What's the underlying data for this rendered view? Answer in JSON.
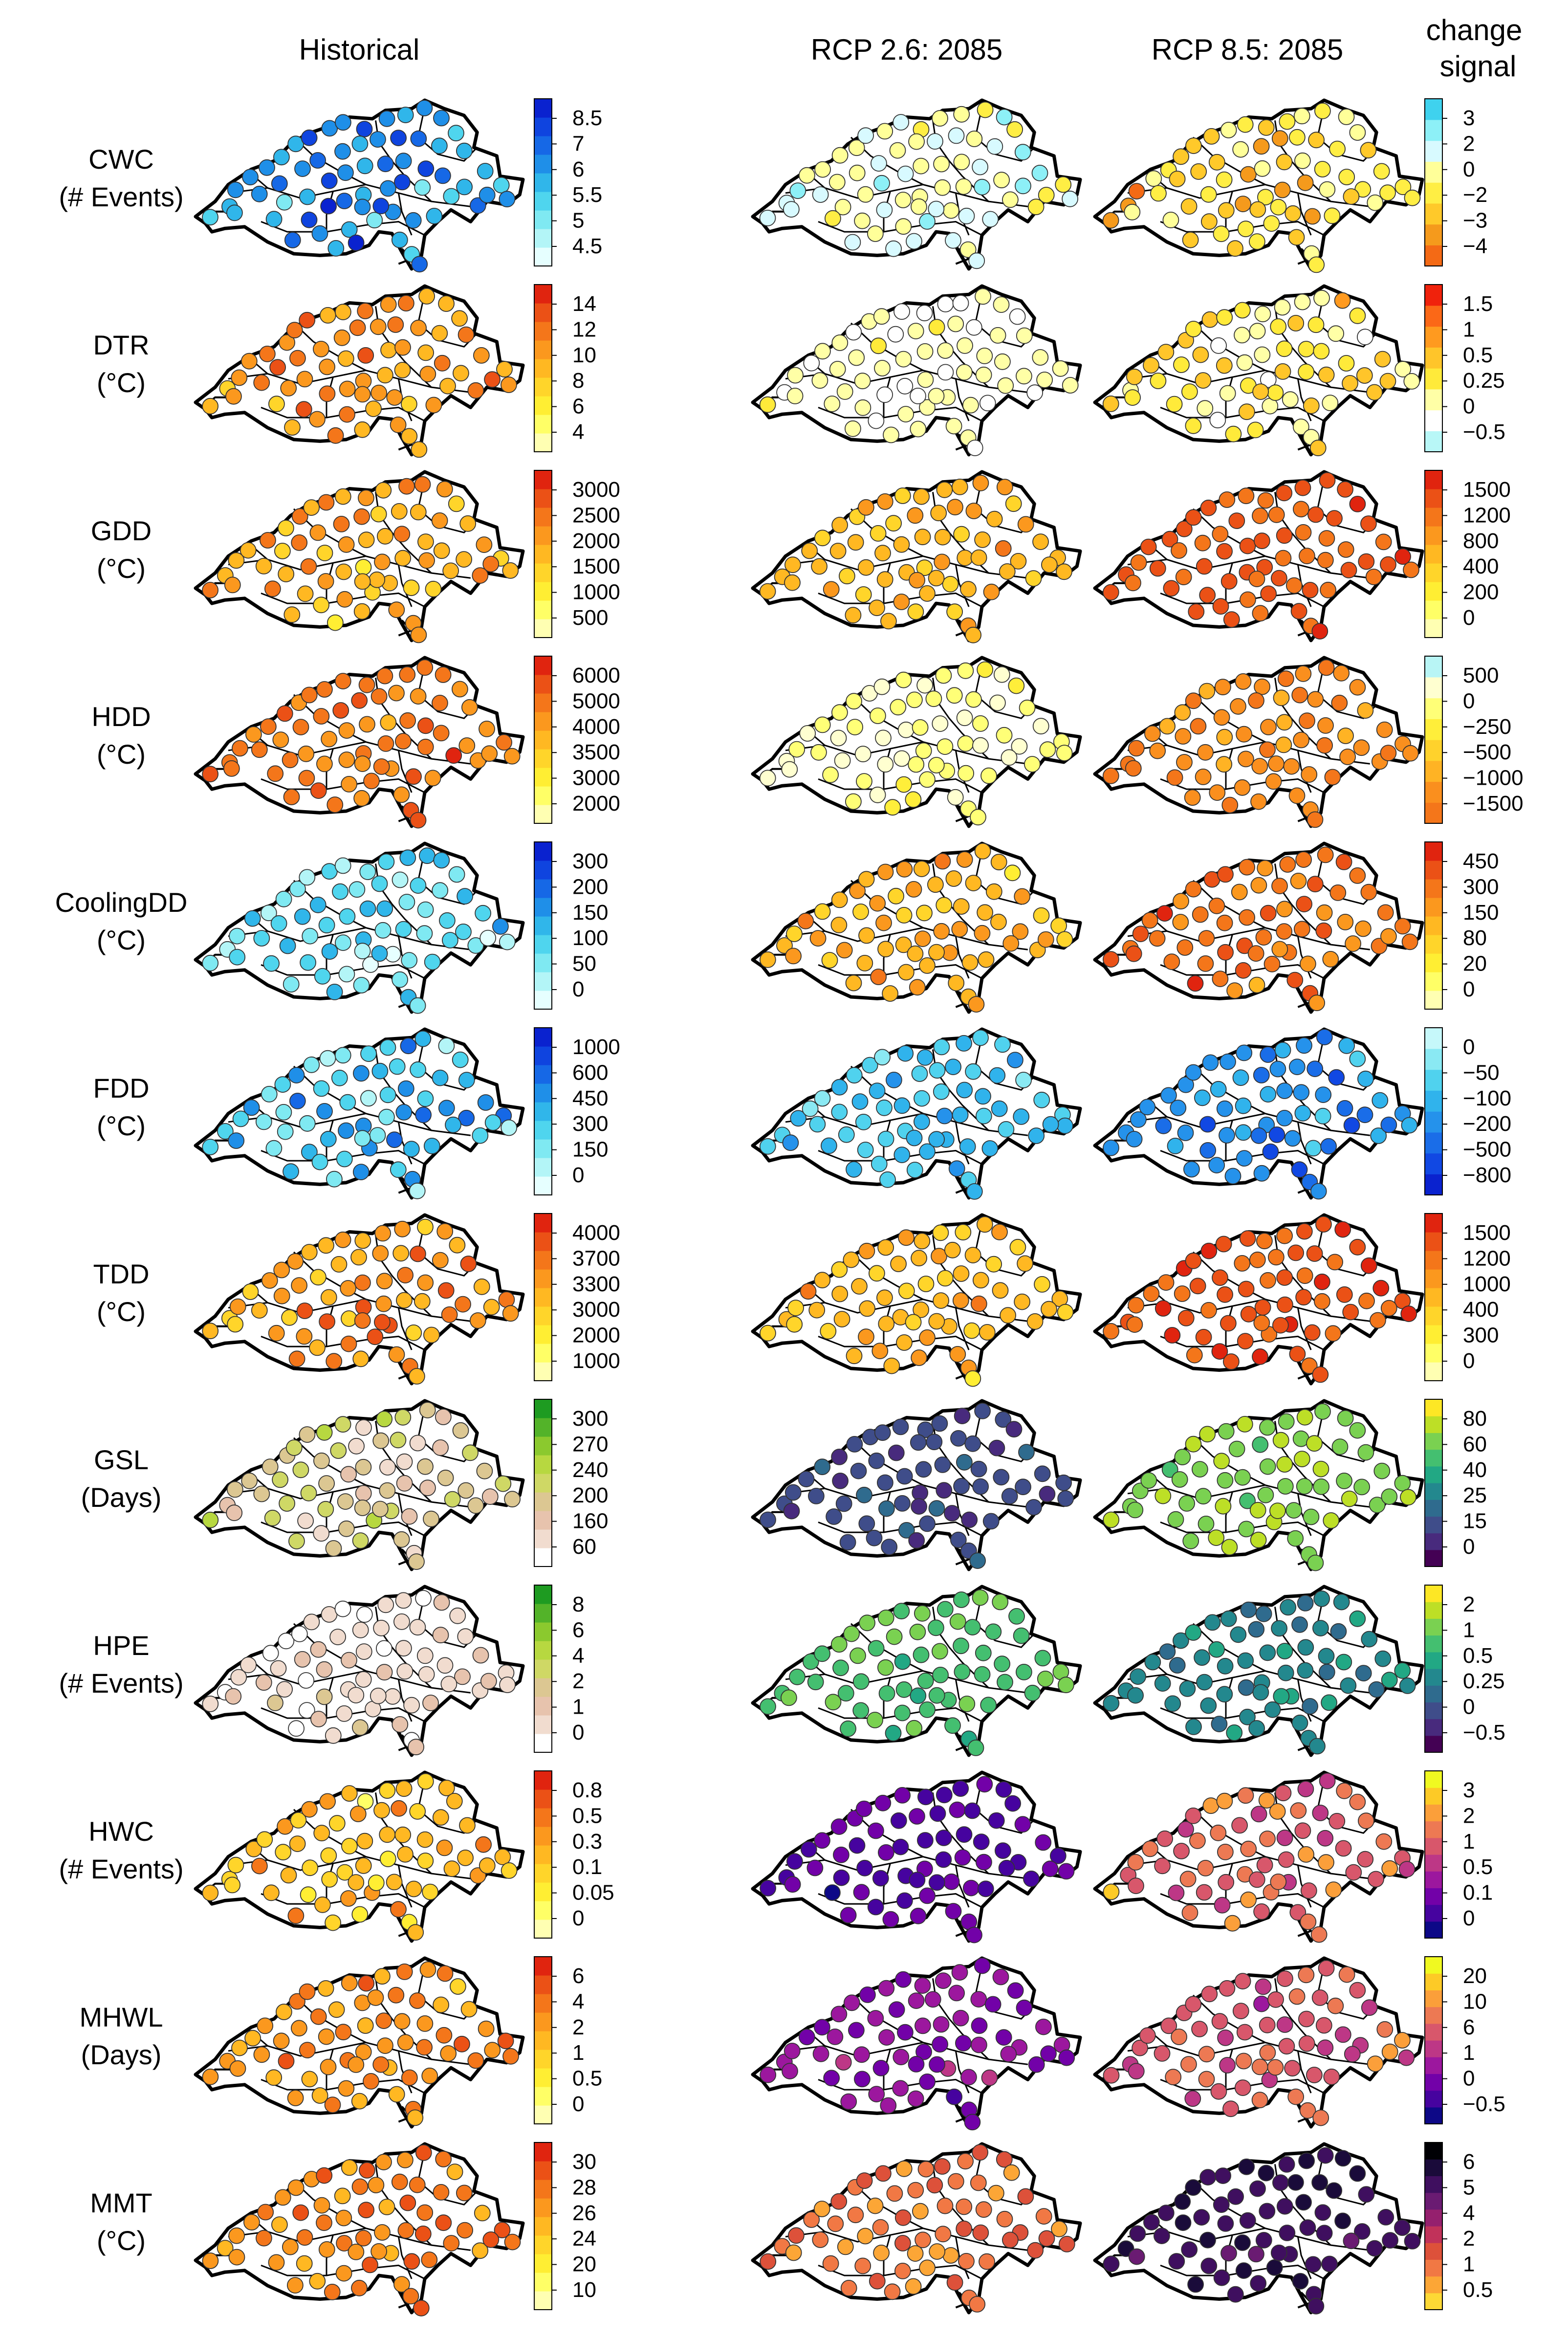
{
  "chart_data": {
    "type": "map-grid",
    "description_fields_only_from_image": true,
    "column_headers": {
      "historical": "Historical",
      "rcp26": "RCP 2.6: 2085",
      "rcp85": "RCP 8.5: 2085",
      "change": [
        "change",
        "signal"
      ]
    },
    "scales": {
      "coldblue": [
        "#e6ffff",
        "#b3f5f7",
        "#7fe9f2",
        "#4fd5ee",
        "#30b6ea",
        "#1f8fe8",
        "#1668e6",
        "#0f44df",
        "#0a22cf"
      ],
      "warm": [
        "#ffffb2",
        "#ffff66",
        "#ffee33",
        "#ffd52a",
        "#ffb822",
        "#fb981e",
        "#f4761a",
        "#eb5116",
        "#e0240f"
      ],
      "cwcchange": [
        "#f46a15",
        "#f59a1c",
        "#ffc92a",
        "#ffee44",
        "#ffff99",
        "#d8faff",
        "#8df0f7",
        "#3fd2ee"
      ],
      "dtrchange": [
        "#b8f7f7",
        "#ffffff",
        "#ffffa6",
        "#ffea3a",
        "#ffc52a",
        "#ff9a1f",
        "#fb6817",
        "#f0220c"
      ],
      "hddchange": [
        "#f4761a",
        "#fa8f1e",
        "#ffb324",
        "#ffd22c",
        "#ffee3a",
        "#ffff77",
        "#ffffd0",
        "#b8f5f5"
      ],
      "fddchange": [
        "#0a22cf",
        "#1148e3",
        "#1a6de8",
        "#2592eb",
        "#30b3ec",
        "#50d2ee",
        "#8ae9f3",
        "#c6f8fa"
      ],
      "green": [
        "#ffffff",
        "#f1dccf",
        "#e7c3ad",
        "#dcc792",
        "#cfd865",
        "#b7d840",
        "#8bc92e",
        "#53b329",
        "#1e9b21"
      ],
      "viridis": [
        "#440154",
        "#482a7d",
        "#3f4d8a",
        "#2f6b8e",
        "#23888e",
        "#22a884",
        "#44bf70",
        "#7ad151",
        "#bddf26",
        "#fde725"
      ],
      "plasma": [
        "#0d0887",
        "#46039f",
        "#7201a8",
        "#9c179e",
        "#bd3786",
        "#d8576b",
        "#ed7953",
        "#fb9f3a",
        "#fdca26",
        "#f0f921"
      ],
      "inferno": [
        "#fdd835",
        "#fca636",
        "#f17844",
        "#dd513a",
        "#c1325a",
        "#95206e",
        "#6a1b72",
        "#3f0f5f",
        "#1a0b3a",
        "#000004"
      ]
    },
    "rows": [
      {
        "name": "CWC",
        "unit": "(# Events)",
        "hist_ticks": [
          "8.5",
          "7",
          "6",
          "5.5",
          "5",
          "4.5"
        ],
        "hist_scale": "coldblue",
        "change_ticks": [
          "3",
          "2",
          "0",
          "−2",
          "−3",
          "−4"
        ],
        "change_scale": "cwcchange",
        "hist_level": 0.6,
        "hist_spread": 0.35,
        "rcp26_level": 0.62,
        "rcp26_spread": 0.25,
        "rcp85_level": 0.35,
        "rcp85_spread": 0.3
      },
      {
        "name": "DTR",
        "unit": "(°C)",
        "hist_ticks": [
          "14",
          "12",
          "10",
          "8",
          "6",
          "4"
        ],
        "hist_scale": "warm",
        "change_ticks": [
          "1.5",
          "1",
          "0.5",
          "0.25",
          "0",
          "−0.5"
        ],
        "change_scale": "dtrchange",
        "hist_level": 0.62,
        "hist_spread": 0.25,
        "rcp26_level": 0.28,
        "rcp26_spread": 0.14,
        "rcp85_level": 0.42,
        "rcp85_spread": 0.25
      },
      {
        "name": "GDD",
        "unit": "(°C)",
        "hist_ticks": [
          "3000",
          "2500",
          "2000",
          "1500",
          "1000",
          "500"
        ],
        "hist_scale": "warm",
        "change_ticks": [
          "1500",
          "1200",
          "800",
          "400",
          "200",
          "0"
        ],
        "change_scale": "warm",
        "hist_level": 0.55,
        "hist_spread": 0.25,
        "rcp26_level": 0.52,
        "rcp26_spread": 0.2,
        "rcp85_level": 0.78,
        "rcp85_spread": 0.15
      },
      {
        "name": "HDD",
        "unit": "(°C)",
        "hist_ticks": [
          "6000",
          "5000",
          "4000",
          "3500",
          "3000",
          "2000"
        ],
        "hist_scale": "warm",
        "change_ticks": [
          "500",
          "0",
          "−250",
          "−500",
          "−1000",
          "−1500"
        ],
        "change_scale": "hddchange",
        "hist_level": 0.72,
        "hist_spread": 0.22,
        "rcp26_level": 0.72,
        "rcp26_spread": 0.15,
        "rcp85_level": 0.18,
        "rcp85_spread": 0.15
      },
      {
        "name": "CoolingDD",
        "unit": "(°C)",
        "hist_ticks": [
          "300",
          "200",
          "150",
          "100",
          "50",
          "0"
        ],
        "hist_scale": "coldblue",
        "change_ticks": [
          "450",
          "300",
          "150",
          "80",
          "20",
          "0"
        ],
        "change_scale": "warm",
        "hist_level": 0.35,
        "hist_spread": 0.3,
        "rcp26_level": 0.5,
        "rcp26_spread": 0.25,
        "rcp85_level": 0.72,
        "rcp85_spread": 0.22
      },
      {
        "name": "FDD",
        "unit": "(°C)",
        "hist_ticks": [
          "1000",
          "600",
          "450",
          "300",
          "150",
          "0"
        ],
        "hist_scale": "coldblue",
        "change_ticks": [
          "0",
          "−50",
          "−100",
          "−200",
          "−500",
          "−800"
        ],
        "change_scale": "fddchange",
        "hist_level": 0.45,
        "hist_spread": 0.35,
        "rcp26_level": 0.6,
        "rcp26_spread": 0.2,
        "rcp85_level": 0.45,
        "rcp85_spread": 0.3
      },
      {
        "name": "TDD",
        "unit": "(°C)",
        "hist_ticks": [
          "4000",
          "3700",
          "3300",
          "3000",
          "2000",
          "1000"
        ],
        "hist_scale": "warm",
        "change_ticks": [
          "1500",
          "1200",
          "1000",
          "400",
          "300",
          "0"
        ],
        "change_scale": "warm",
        "hist_level": 0.6,
        "hist_spread": 0.3,
        "rcp26_level": 0.5,
        "rcp26_spread": 0.22,
        "rcp85_level": 0.82,
        "rcp85_spread": 0.15
      },
      {
        "name": "GSL",
        "unit": "(Days)",
        "hist_ticks": [
          "300",
          "270",
          "240",
          "200",
          "160",
          "60"
        ],
        "hist_scale": "green",
        "change_ticks": [
          "80",
          "60",
          "40",
          "25",
          "15",
          "0"
        ],
        "change_scale": "viridis",
        "hist_level": 0.38,
        "hist_spread": 0.28,
        "rcp26_level": 0.25,
        "rcp26_spread": 0.12,
        "rcp85_level": 0.78,
        "rcp85_spread": 0.12
      },
      {
        "name": "HPE",
        "unit": "(# Events)",
        "hist_ticks": [
          "8",
          "6",
          "4",
          "2",
          "1",
          "0"
        ],
        "hist_scale": "green",
        "change_ticks": [
          "2",
          "1",
          "0.5",
          "0.25",
          "0",
          "−0.5"
        ],
        "change_scale": "viridis",
        "hist_level": 0.18,
        "hist_spread": 0.22,
        "rcp26_level": 0.68,
        "rcp26_spread": 0.12,
        "rcp85_level": 0.45,
        "rcp85_spread": 0.15
      },
      {
        "name": "HWC",
        "unit": "(# Events)",
        "hist_ticks": [
          "0.8",
          "0.5",
          "0.3",
          "0.1",
          "0.05",
          "0"
        ],
        "hist_scale": "warm",
        "change_ticks": [
          "3",
          "2",
          "1",
          "0.5",
          "0.1",
          "0"
        ],
        "change_scale": "plasma",
        "hist_level": 0.5,
        "hist_spread": 0.3,
        "rcp26_level": 0.2,
        "rcp26_spread": 0.15,
        "rcp85_level": 0.6,
        "rcp85_spread": 0.22
      },
      {
        "name": "MHWL",
        "unit": "(Days)",
        "hist_ticks": [
          "6",
          "4",
          "2",
          "1",
          "0.5",
          "0"
        ],
        "hist_scale": "warm",
        "change_ticks": [
          "20",
          "10",
          "6",
          "1",
          "0",
          "−0.5"
        ],
        "change_scale": "plasma",
        "hist_level": 0.6,
        "hist_spread": 0.25,
        "rcp26_level": 0.3,
        "rcp26_spread": 0.15,
        "rcp85_level": 0.55,
        "rcp85_spread": 0.2
      },
      {
        "name": "MMT",
        "unit": "(°C)",
        "hist_ticks": [
          "30",
          "28",
          "26",
          "24",
          "20",
          "10"
        ],
        "hist_scale": "warm",
        "change_ticks": [
          "6",
          "5",
          "4",
          "2",
          "1",
          "0.5"
        ],
        "change_scale": "inferno",
        "hist_level": 0.65,
        "hist_spread": 0.25,
        "rcp26_level": 0.25,
        "rcp26_spread": 0.15,
        "rcp85_level": 0.78,
        "rcp85_spread": 0.12
      }
    ]
  }
}
